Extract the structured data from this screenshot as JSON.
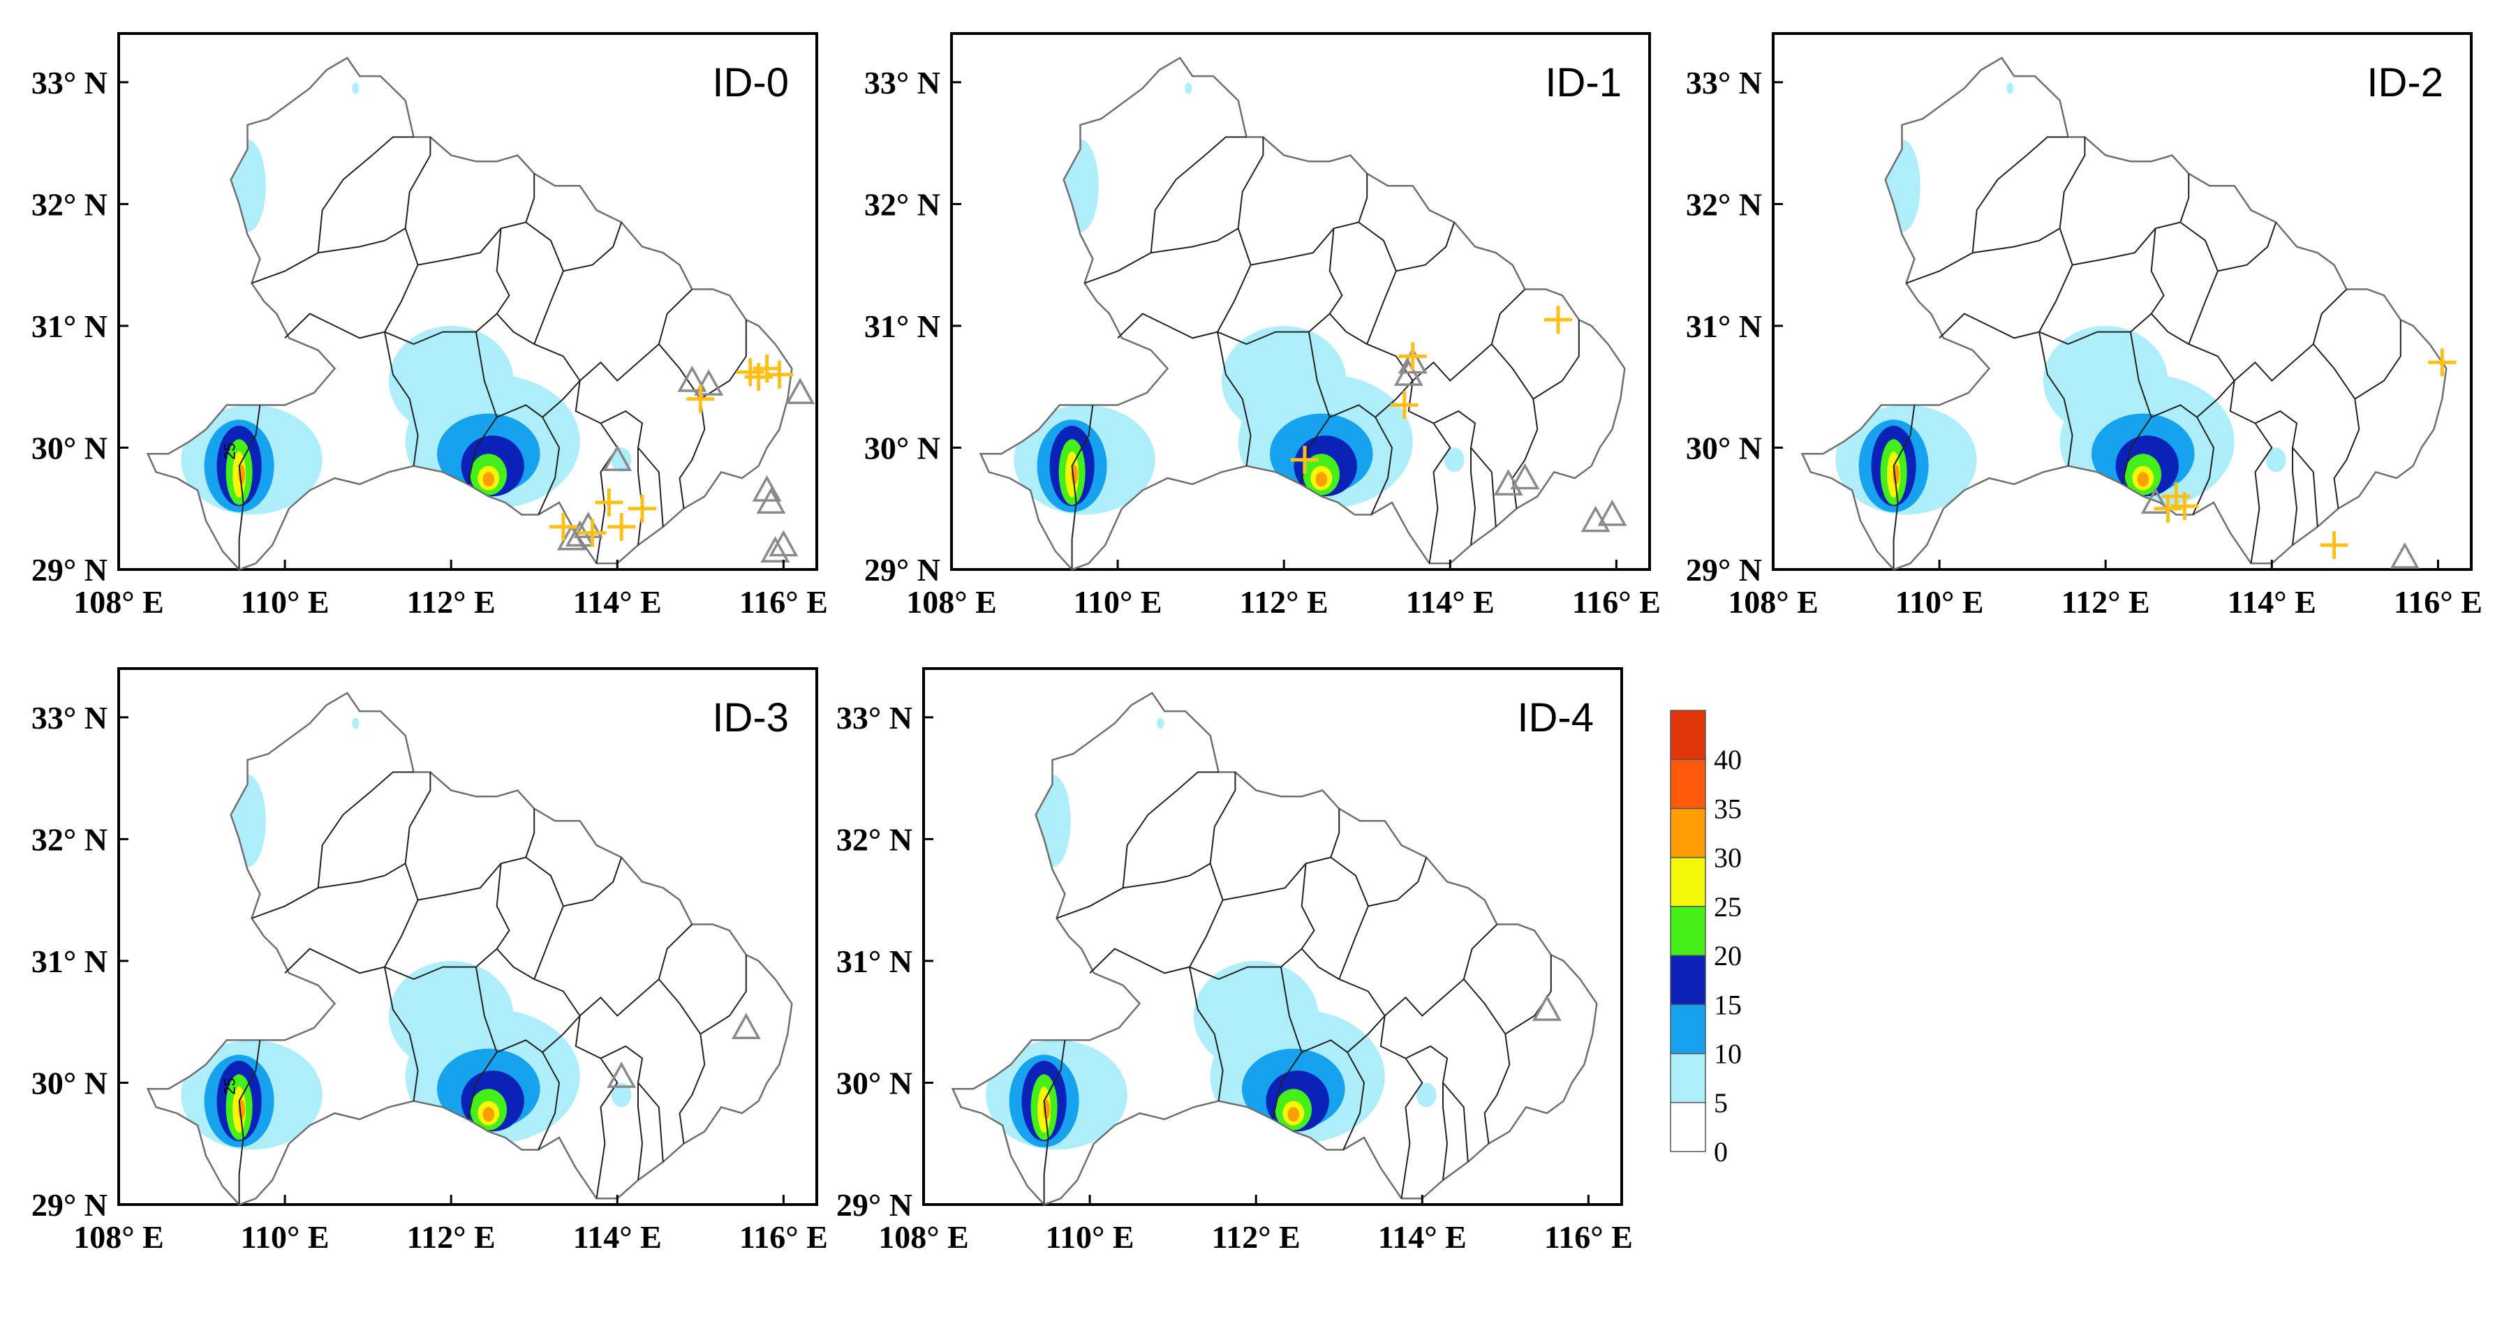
{
  "figure": {
    "panels": [
      {
        "title": "ID-0",
        "crosses": [
          [
            115.6,
            30.62
          ],
          [
            115.8,
            30.65
          ],
          [
            115.7,
            30.58
          ],
          [
            115.95,
            30.6
          ],
          [
            115.0,
            30.4
          ],
          [
            113.35,
            29.35
          ],
          [
            113.9,
            29.55
          ],
          [
            114.05,
            29.35
          ],
          [
            114.3,
            29.5
          ],
          [
            113.7,
            29.3
          ]
        ],
        "triangles": [
          [
            114.9,
            30.55
          ],
          [
            115.1,
            30.52
          ],
          [
            116.2,
            30.45
          ],
          [
            114.0,
            29.9
          ],
          [
            113.55,
            29.28
          ],
          [
            113.65,
            29.35
          ],
          [
            113.45,
            29.25
          ],
          [
            115.8,
            29.65
          ],
          [
            115.85,
            29.55
          ],
          [
            115.9,
            29.15
          ],
          [
            116.0,
            29.2
          ]
        ]
      },
      {
        "title": "ID-1",
        "crosses": [
          [
            115.3,
            31.05
          ],
          [
            113.55,
            30.75
          ],
          [
            113.45,
            30.35
          ],
          [
            112.25,
            29.9
          ]
        ],
        "triangles": [
          [
            113.55,
            30.7
          ],
          [
            113.5,
            30.6
          ],
          [
            114.7,
            29.7
          ],
          [
            114.9,
            29.75
          ],
          [
            115.95,
            29.45
          ],
          [
            115.75,
            29.4
          ]
        ]
      },
      {
        "title": "ID-2",
        "crosses": [
          [
            116.05,
            30.7
          ],
          [
            114.75,
            29.2
          ],
          [
            112.95,
            29.52
          ],
          [
            112.75,
            29.5
          ],
          [
            112.85,
            29.6
          ]
        ],
        "triangles": [
          [
            112.6,
            29.55
          ],
          [
            115.6,
            29.1
          ]
        ]
      },
      {
        "title": "ID-3",
        "crosses": [],
        "triangles": [
          [
            114.05,
            30.05
          ],
          [
            115.55,
            30.45
          ]
        ]
      },
      {
        "title": "ID-4",
        "crosses": [],
        "triangles": [
          [
            115.5,
            30.6
          ]
        ]
      }
    ],
    "axes": {
      "lon": {
        "min": 108,
        "max": 116.4,
        "ticks": [
          108,
          110,
          112,
          114,
          116
        ]
      },
      "lat": {
        "min": 29,
        "max": 33.4,
        "ticks": [
          29,
          30,
          31,
          32,
          33
        ]
      },
      "lon_tick_labels": [
        "108° E",
        "110° E",
        "112° E",
        "114° E",
        "116° E"
      ],
      "lat_tick_labels": [
        "29° N",
        "30° N",
        "31° N",
        "32° N",
        "33° N"
      ]
    },
    "contour_label": "25",
    "colorbar": {
      "levels": [
        0,
        5,
        10,
        15,
        20,
        25,
        30,
        35,
        40
      ],
      "labels": [
        "0",
        "5",
        "10",
        "15",
        "20",
        "25",
        "30",
        "35",
        "40"
      ],
      "colors": [
        "#ffffff",
        "#aeeefb",
        "#17a2f0",
        "#0b22b9",
        "#44ef1a",
        "#f5f708",
        "#ff9d05",
        "#ff5a0c",
        "#e1370b"
      ]
    },
    "marker_colors": {
      "cross": "#ffbf17",
      "triangle": "#8a8a8a"
    },
    "map_colors": {
      "outline": "#6f6f6f",
      "inner_border": "#222222"
    }
  }
}
